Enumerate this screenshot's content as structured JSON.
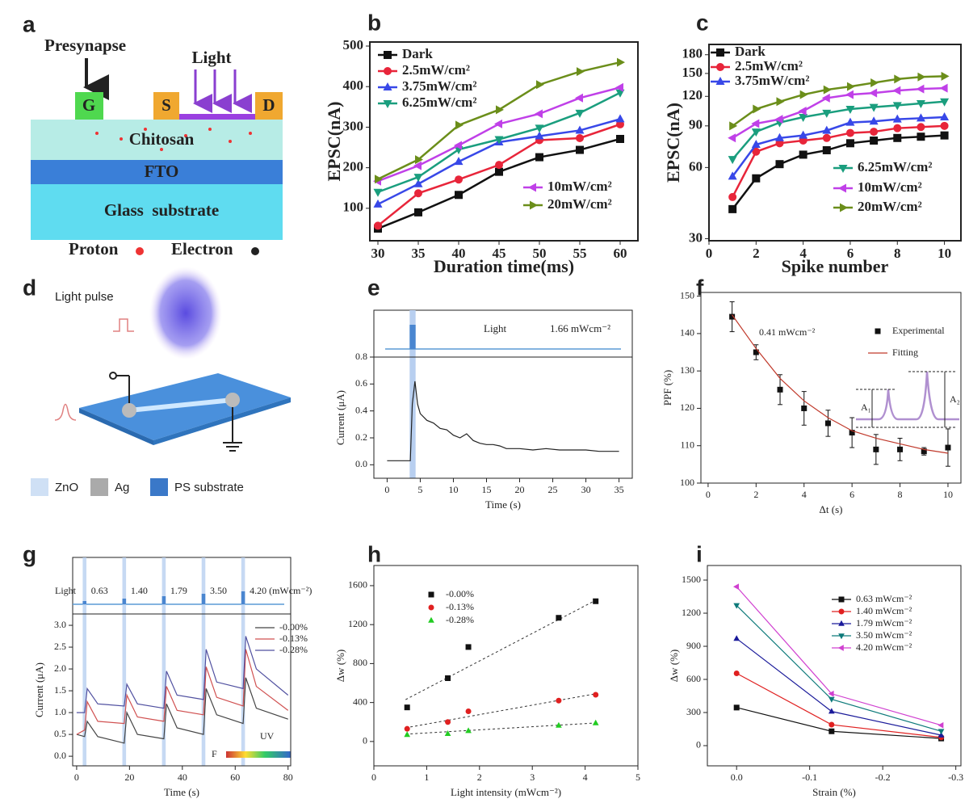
{
  "panel_labels": [
    "a",
    "b",
    "c",
    "d",
    "e",
    "f",
    "g",
    "h",
    "i"
  ],
  "diagram_a": {
    "presynapse": "Presynapse",
    "light": "Light",
    "gate": "G",
    "source": "S",
    "drain": "D",
    "chitosan": "Chitosan",
    "fto": "FTO",
    "glass": "Glass  substrate",
    "proton": "Proton",
    "electron": "Electron"
  },
  "diagram_d": {
    "light_pulse": "Light pulse",
    "legend": [
      "ZnO",
      "Ag",
      "PS substrate"
    ]
  },
  "chart_data": [
    {
      "type": "line",
      "xlabel": "Duration time(ms)",
      "ylabel": "EPSC(nA)",
      "x": [
        30,
        35,
        40,
        45,
        50,
        55,
        60
      ],
      "xlim": [
        29,
        62.2
      ],
      "ylim": [
        20,
        510
      ],
      "xticks": [
        30,
        35,
        40,
        45,
        50,
        55,
        60
      ],
      "yticks": [
        100,
        200,
        300,
        400,
        500
      ],
      "series": [
        {
          "name": "Dark",
          "color": "#111111",
          "marker": "square",
          "values": [
            50,
            90,
            133,
            190,
            226,
            244,
            271
          ]
        },
        {
          "name": "2.5mW/cm²",
          "color": "#e8253a",
          "marker": "circle",
          "values": [
            57,
            137,
            171,
            207,
            268,
            273,
            307
          ]
        },
        {
          "name": "3.75mW/cm²",
          "color": "#3848e8",
          "marker": "up",
          "values": [
            110,
            160,
            215,
            263,
            278,
            292,
            320
          ]
        },
        {
          "name": "6.25mW/cm²",
          "color": "#1a9e7e",
          "marker": "down",
          "values": [
            140,
            177,
            245,
            270,
            298,
            335,
            385
          ]
        },
        {
          "name": "10mW/cm²",
          "color": "#c040e8",
          "marker": "left",
          "values": [
            167,
            205,
            255,
            308,
            333,
            372,
            398
          ]
        },
        {
          "name": "20mW/cm²",
          "color": "#6b8e1a",
          "marker": "right",
          "values": [
            172,
            220,
            305,
            343,
            405,
            437,
            460
          ]
        }
      ]
    },
    {
      "type": "line",
      "log_y": true,
      "xlabel": "Spike number",
      "ylabel": "EPSC(nA)",
      "x": [
        1,
        2,
        3,
        4,
        5,
        6,
        7,
        8,
        9,
        10
      ],
      "xlim": [
        0,
        10.7
      ],
      "ylim": [
        29.4,
        199
      ],
      "xticks": [
        0,
        2,
        4,
        6,
        8,
        10
      ],
      "yticks": [
        30,
        60,
        90,
        120,
        150,
        180
      ],
      "series": [
        {
          "name": "Dark",
          "color": "#111111",
          "marker": "square",
          "values": [
            40,
            54,
            62,
            68,
            71,
            76,
            78,
            80,
            81,
            82
          ]
        },
        {
          "name": "2.5mW/cm²",
          "color": "#e8253a",
          "marker": "circle",
          "values": [
            45,
            70,
            76,
            78,
            80,
            84,
            85,
            88,
            89,
            90
          ]
        },
        {
          "name": "3.75mW/cm²",
          "color": "#3848e8",
          "marker": "up",
          "values": [
            55,
            75,
            80,
            82,
            86,
            93,
            94,
            96,
            97,
            98
          ]
        },
        {
          "name": "6.25mW/cm²",
          "color": "#1a9e7e",
          "marker": "down",
          "values": [
            65,
            85,
            93,
            98,
            102,
            106,
            108,
            110,
            112,
            114
          ]
        },
        {
          "name": "10mW/cm²",
          "color": "#c040e8",
          "marker": "left",
          "values": [
            80,
            92,
            96,
            104,
            118,
            122,
            124,
            127,
            129,
            130
          ]
        },
        {
          "name": "20mW/cm²",
          "color": "#6b8e1a",
          "marker": "right",
          "values": [
            90,
            106,
            114,
            122,
            128,
            132,
            137,
            142,
            145,
            146
          ]
        }
      ]
    },
    {
      "type": "line",
      "xlabel": "Time (s)",
      "ylabel": "Current (μA)",
      "inset_label": "Light",
      "intensity_label": "1.66 mWcm⁻²",
      "pulse": [
        3.4,
        4.3
      ],
      "x": [
        0,
        3.5,
        3.8,
        4.2,
        4.6,
        5,
        6,
        7,
        8,
        9,
        10,
        11,
        12,
        13,
        14,
        15,
        16,
        17,
        18,
        20,
        22,
        24,
        26,
        28,
        30,
        32,
        35
      ],
      "xlim": [
        -2,
        37
      ],
      "ylim": [
        -0.1,
        0.8
      ],
      "xticks": [
        0,
        5,
        10,
        15,
        20,
        25,
        30,
        35
      ],
      "yticks": [
        {
          "value": 0,
          "label": "0.0"
        },
        0.2,
        0.4,
        0.6,
        0.8
      ],
      "series": [
        {
          "color": "#222222",
          "values": [
            0.03,
            0.03,
            0.45,
            0.62,
            0.45,
            0.38,
            0.33,
            0.31,
            0.27,
            0.26,
            0.22,
            0.2,
            0.23,
            0.18,
            0.16,
            0.15,
            0.15,
            0.14,
            0.12,
            0.12,
            0.11,
            0.12,
            0.11,
            0.11,
            0.11,
            0.1,
            0.1
          ]
        }
      ]
    },
    {
      "type": "scatter",
      "xlabel": "Δt (s)",
      "ylabel": "PPF (%)",
      "annotations": [
        "0.41 mWcm⁻²",
        "A₁",
        "A₂"
      ],
      "x": [
        1,
        2,
        3,
        4,
        5,
        6,
        7,
        8,
        9,
        10
      ],
      "xlim": [
        -0.3,
        10.54
      ],
      "ylim": [
        100,
        151
      ],
      "xticks": [
        0,
        2,
        4,
        6,
        8,
        10
      ],
      "yticks": [
        100,
        110,
        120,
        130,
        140,
        150
      ],
      "series": [
        {
          "name": "Experimental",
          "color": "#111111",
          "marker": "square",
          "values": [
            144.5,
            135,
            125,
            120,
            116,
            113.5,
            109,
            109,
            108.5,
            109.5
          ],
          "errors": [
            4,
            2,
            4,
            4.5,
            3.5,
            4,
            4,
            3,
            1,
            5
          ]
        },
        {
          "name": "Fitting",
          "color": "#c0392b",
          "line": true,
          "values": [
            145,
            136,
            128,
            122,
            117.5,
            114,
            112,
            110.5,
            109,
            108
          ]
        }
      ]
    },
    {
      "type": "line",
      "xlabel": "Time (s)",
      "ylabel": "Current (μA)",
      "inset_label": "Light",
      "pulses": [
        3,
        18,
        33,
        48,
        63
      ],
      "pulse_labels": [
        "0.63",
        "1.40",
        "1.79",
        "3.50",
        "4.20 (mWcm⁻²)"
      ],
      "annotations": [
        "UV",
        "F"
      ],
      "x": [
        0,
        3,
        4,
        8,
        18,
        19,
        23,
        33,
        34,
        38,
        48,
        49,
        53,
        63,
        64,
        68,
        80
      ],
      "xlim": [
        -1.5,
        81
      ],
      "ylim": [
        -0.22,
        3.26
      ],
      "xticks": [
        0,
        20,
        40,
        60,
        80
      ],
      "yticks": [
        {
          "value": 0,
          "label": "0.0"
        },
        0.5,
        {
          "value": 1,
          "label": "1.0"
        },
        1.5,
        {
          "value": 2,
          "label": "2.0"
        },
        2.5,
        {
          "value": 3,
          "label": "3.0"
        }
      ],
      "series": [
        {
          "name": "-0.00%",
          "color": "#444444",
          "values": [
            0.5,
            0.45,
            0.8,
            0.45,
            0.3,
            1.0,
            0.5,
            0.4,
            1.2,
            0.65,
            0.5,
            1.55,
            0.95,
            0.75,
            1.8,
            1.1,
            0.85
          ]
        },
        {
          "name": "-0.13%",
          "color": "#d05050",
          "values": [
            0.5,
            0.6,
            1.25,
            0.8,
            0.75,
            1.4,
            0.9,
            0.8,
            1.6,
            1.05,
            0.95,
            2.05,
            1.35,
            1.15,
            2.45,
            1.6,
            1.05
          ]
        },
        {
          "name": "-0.28%",
          "color": "#5050a0",
          "values": [
            1.0,
            1.0,
            1.55,
            1.2,
            1.15,
            1.65,
            1.2,
            1.1,
            1.95,
            1.4,
            1.3,
            2.45,
            1.7,
            1.55,
            2.75,
            2.0,
            1.4
          ]
        }
      ]
    },
    {
      "type": "scatter",
      "xlabel": "Light intensity (mWcm⁻²)",
      "ylabel": "Δw (%)",
      "x": [
        0.63,
        1.4,
        1.79,
        3.5,
        4.2
      ],
      "fit_x": [
        0.6,
        4.2
      ],
      "xlim": [
        0,
        5
      ],
      "ylim": [
        -250,
        1807
      ],
      "xticks": [
        0,
        1,
        2,
        3,
        4,
        5
      ],
      "yticks": [
        0,
        400,
        800,
        1200,
        1600
      ],
      "series": [
        {
          "name": "-0.00%",
          "color": "#111111",
          "marker": "square",
          "values": [
            350,
            650,
            970,
            1270,
            1440
          ],
          "fit": [
            430,
            1450
          ]
        },
        {
          "name": "-0.13%",
          "color": "#e02020",
          "marker": "circle",
          "values": [
            130,
            200,
            310,
            420,
            480
          ],
          "fit": [
            140,
            490
          ]
        },
        {
          "name": "-0.28%",
          "color": "#22cc22",
          "marker": "up",
          "values": [
            70,
            80,
            110,
            165,
            190
          ],
          "fit": [
            75,
            190
          ]
        }
      ]
    },
    {
      "type": "line",
      "xlabel": "Strain (%)",
      "ylabel": "Δw (%)",
      "x": [
        0,
        -0.13,
        -0.28
      ],
      "xlim": [
        0.04,
        -0.307
      ],
      "ylim": [
        -183,
        1632
      ],
      "xticks": [
        {
          "value": 0,
          "label": "0.0"
        },
        -0.1,
        -0.2,
        -0.3
      ],
      "yticks": [
        0,
        300,
        600,
        900,
        1200,
        1500
      ],
      "series": [
        {
          "name": "0.63 mWcm⁻²",
          "color": "#111111",
          "marker": "square",
          "values": [
            345,
            130,
            65
          ]
        },
        {
          "name": "1.40 mWcm⁻²",
          "color": "#e02020",
          "marker": "circle",
          "values": [
            655,
            190,
            75
          ]
        },
        {
          "name": "1.79 mWcm⁻²",
          "color": "#1a1a9a",
          "marker": "up",
          "values": [
            970,
            310,
            95
          ]
        },
        {
          "name": "3.50 mWcm⁻²",
          "color": "#0d7a7a",
          "marker": "down",
          "values": [
            1270,
            420,
            130
          ]
        },
        {
          "name": "4.20 mWcm⁻²",
          "color": "#d040d0",
          "marker": "left",
          "values": [
            1440,
            470,
            185
          ]
        }
      ]
    }
  ]
}
